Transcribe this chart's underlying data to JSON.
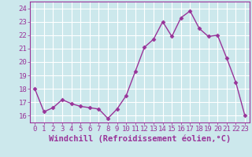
{
  "x": [
    0,
    1,
    2,
    3,
    4,
    5,
    6,
    7,
    8,
    9,
    10,
    11,
    12,
    13,
    14,
    15,
    16,
    17,
    18,
    19,
    20,
    21,
    22,
    23
  ],
  "y": [
    18.0,
    16.3,
    16.6,
    17.2,
    16.9,
    16.7,
    16.6,
    16.5,
    15.8,
    16.5,
    17.5,
    19.3,
    21.1,
    21.7,
    23.0,
    21.9,
    23.3,
    23.8,
    22.5,
    21.9,
    22.0,
    20.3,
    18.5,
    16.0
  ],
  "line_color": "#993399",
  "marker": "D",
  "marker_size": 2.5,
  "xlabel": "Windchill (Refroidissement éolien,°C)",
  "ylim": [
    15.5,
    24.5
  ],
  "yticks": [
    16,
    17,
    18,
    19,
    20,
    21,
    22,
    23,
    24
  ],
  "xticks": [
    0,
    1,
    2,
    3,
    4,
    5,
    6,
    7,
    8,
    9,
    10,
    11,
    12,
    13,
    14,
    15,
    16,
    17,
    18,
    19,
    20,
    21,
    22,
    23
  ],
  "background_color": "#cce8ec",
  "grid_color": "#ffffff",
  "tick_color": "#993399",
  "xlabel_fontsize": 7.5,
  "tick_fontsize": 6.5,
  "linewidth": 1.0
}
